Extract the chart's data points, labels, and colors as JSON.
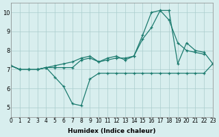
{
  "xlabel": "Humidex (Indice chaleur)",
  "ylabel": "",
  "bg_color": "#d8eeee",
  "line_color": "#1a7a6e",
  "grid_color": "#aacccc",
  "xlim": [
    0,
    23
  ],
  "ylim": [
    4.5,
    10.5
  ],
  "xticks": [
    0,
    1,
    2,
    3,
    4,
    5,
    6,
    7,
    8,
    9,
    10,
    11,
    12,
    13,
    14,
    15,
    16,
    17,
    18,
    19,
    20,
    21,
    22,
    23
  ],
  "yticks": [
    5,
    6,
    7,
    8,
    9,
    10
  ],
  "series": [
    [
      7.2,
      7.0,
      7.0,
      7.0,
      7.1,
      6.6,
      6.1,
      5.2,
      5.1,
      6.5,
      6.8,
      6.8,
      6.8,
      6.8,
      6.8,
      6.8,
      6.8,
      6.8,
      6.8,
      6.8,
      6.8,
      6.8,
      6.8,
      7.3
    ],
    [
      7.2,
      7.0,
      7.0,
      7.0,
      7.1,
      7.1,
      7.1,
      7.1,
      7.5,
      7.6,
      7.4,
      7.6,
      7.7,
      7.5,
      7.7,
      8.6,
      9.2,
      10.1,
      9.6,
      8.4,
      8.0,
      7.9,
      7.8,
      null
    ],
    [
      7.2,
      7.0,
      7.0,
      7.0,
      7.1,
      7.2,
      7.3,
      7.4,
      7.6,
      7.7,
      7.4,
      7.5,
      7.6,
      7.6,
      7.7,
      8.8,
      10.0,
      10.1,
      10.1,
      7.3,
      8.4,
      8.0,
      7.9,
      7.3
    ]
  ]
}
